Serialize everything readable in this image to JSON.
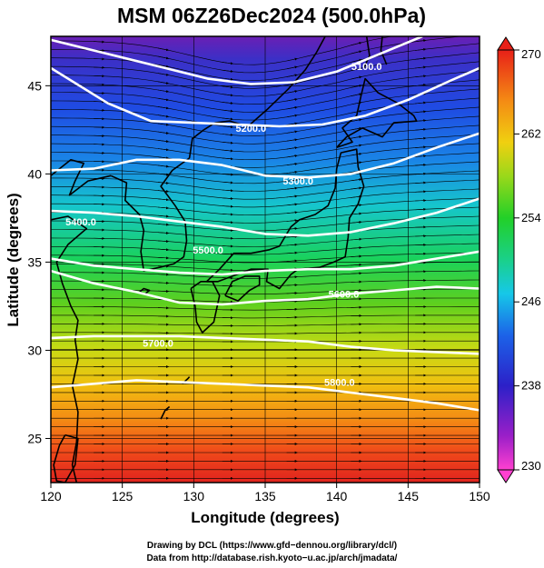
{
  "title": "MSM 06Z26Dec2024 (500.0hPa)",
  "x_axis": {
    "label": "Longitude (degrees)",
    "range": [
      120,
      150
    ],
    "ticks": [
      {
        "v": 120,
        "t": "120"
      },
      {
        "v": 125,
        "t": "125"
      },
      {
        "v": 130,
        "t": "130"
      },
      {
        "v": 135,
        "t": "135"
      },
      {
        "v": 140,
        "t": "140"
      },
      {
        "v": 145,
        "t": "145"
      },
      {
        "v": 150,
        "t": "150"
      }
    ]
  },
  "y_axis": {
    "label": "Latitude  (degrees)",
    "range": [
      22.5,
      47.8
    ],
    "ticks": [
      {
        "v": 25,
        "t": "25"
      },
      {
        "v": 30,
        "t": "30"
      },
      {
        "v": 35,
        "t": "35"
      },
      {
        "v": 40,
        "t": "40"
      },
      {
        "v": 45,
        "t": "45"
      }
    ]
  },
  "colorbar": {
    "range": [
      230,
      270
    ],
    "ticks": [
      {
        "v": 230,
        "t": "230"
      },
      {
        "v": 238,
        "t": "238"
      },
      {
        "v": 246,
        "t": "246"
      },
      {
        "v": 254,
        "t": "254"
      },
      {
        "v": 262,
        "t": "262"
      },
      {
        "v": 270,
        "t": "270"
      }
    ]
  },
  "contours": [
    {
      "label": "5100.0",
      "points": [
        [
          120,
          47.6
        ],
        [
          124,
          46.8
        ],
        [
          128,
          46.0
        ],
        [
          131,
          45.4
        ],
        [
          134,
          45.1
        ],
        [
          137,
          45.2
        ],
        [
          140,
          45.8
        ],
        [
          143,
          46.8
        ],
        [
          146,
          47.8
        ]
      ],
      "label_at": [
        142.1,
        46.1
      ]
    },
    {
      "label": "5200.0",
      "points": [
        [
          120,
          46.0
        ],
        [
          124,
          44.0
        ],
        [
          127,
          43.0
        ],
        [
          130,
          42.9
        ],
        [
          133,
          42.8
        ],
        [
          136,
          42.7
        ],
        [
          139,
          42.8
        ],
        [
          142,
          43.3
        ],
        [
          145,
          44.2
        ],
        [
          148,
          45.3
        ],
        [
          150,
          46.0
        ]
      ],
      "label_at": [
        134.0,
        42.6
      ]
    },
    {
      "label": "5300.0",
      "points": [
        [
          120,
          40.2
        ],
        [
          123,
          40.3
        ],
        [
          126,
          40.8
        ],
        [
          129,
          40.8
        ],
        [
          132,
          40.5
        ],
        [
          135,
          39.9
        ],
        [
          138,
          39.8
        ],
        [
          141,
          40.0
        ],
        [
          144,
          40.6
        ],
        [
          147,
          41.5
        ],
        [
          150,
          42.3
        ]
      ],
      "label_at": [
        137.3,
        39.6
      ]
    },
    {
      "label": "5400.0",
      "points": [
        [
          120,
          37.9
        ],
        [
          123,
          37.8
        ],
        [
          126,
          37.6
        ],
        [
          129,
          37.3
        ],
        [
          132,
          37.0
        ],
        [
          135,
          36.6
        ],
        [
          138,
          36.5
        ],
        [
          141,
          36.7
        ],
        [
          144,
          37.2
        ],
        [
          147,
          37.8
        ],
        [
          150,
          38.6
        ]
      ],
      "label_at": [
        122.1,
        37.3
      ]
    },
    {
      "label": "5500.0",
      "points": [
        [
          120,
          35.2
        ],
        [
          123,
          34.8
        ],
        [
          126,
          34.6
        ],
        [
          129,
          34.4
        ],
        [
          132,
          34.3
        ],
        [
          135,
          34.5
        ],
        [
          138,
          34.6
        ],
        [
          141,
          34.6
        ],
        [
          144,
          34.8
        ],
        [
          147,
          35.2
        ],
        [
          150,
          35.6
        ]
      ],
      "label_at": [
        131.0,
        35.7
      ]
    },
    {
      "label": "5600.0",
      "points": [
        [
          120,
          34.5
        ],
        [
          123,
          33.8
        ],
        [
          126,
          33.3
        ],
        [
          129,
          32.7
        ],
        [
          132,
          32.6
        ],
        [
          135,
          32.8
        ],
        [
          138,
          32.9
        ],
        [
          141,
          33.2
        ],
        [
          144,
          33.4
        ],
        [
          147,
          33.6
        ],
        [
          150,
          33.5
        ]
      ],
      "label_at": [
        140.5,
        33.2
      ]
    },
    {
      "label": "5700.0",
      "points": [
        [
          120,
          30.7
        ],
        [
          123,
          30.8
        ],
        [
          126,
          30.8
        ],
        [
          129,
          30.8
        ],
        [
          132,
          30.7
        ],
        [
          135,
          30.6
        ],
        [
          138,
          30.5
        ],
        [
          141,
          30.2
        ],
        [
          144,
          30.0
        ],
        [
          147,
          29.9
        ],
        [
          150,
          29.8
        ]
      ],
      "label_at": [
        127.5,
        30.4
      ]
    },
    {
      "label": "5800.0",
      "points": [
        [
          120,
          27.9
        ],
        [
          123,
          28.1
        ],
        [
          126,
          28.3
        ],
        [
          129,
          28.2
        ],
        [
          132,
          28.1
        ],
        [
          135,
          28.0
        ],
        [
          138,
          27.9
        ],
        [
          141,
          27.6
        ],
        [
          144,
          27.3
        ],
        [
          147,
          27.0
        ],
        [
          150,
          26.6
        ]
      ],
      "label_at": [
        140.2,
        28.2
      ]
    }
  ],
  "coastlines": [
    {
      "name": "China coast",
      "points": [
        [
          121.8,
          22.5
        ],
        [
          121.5,
          23.5
        ],
        [
          121.8,
          24.8
        ],
        [
          121.9,
          26.5
        ],
        [
          121.5,
          28.0
        ],
        [
          121.9,
          29.5
        ],
        [
          121.7,
          30.6
        ],
        [
          121.9,
          31.7
        ],
        [
          121.4,
          32.5
        ],
        [
          120.8,
          33.8
        ],
        [
          120.4,
          35.0
        ],
        [
          121.2,
          36.0
        ],
        [
          122.5,
          36.9
        ],
        [
          121.2,
          37.6
        ],
        [
          120.0,
          37.4
        ]
      ]
    },
    {
      "name": "Taiwan",
      "points": [
        [
          121.0,
          25.2
        ],
        [
          121.9,
          25.0
        ],
        [
          121.7,
          23.5
        ],
        [
          121.0,
          22.5
        ],
        [
          120.4,
          22.6
        ],
        [
          120.2,
          23.5
        ],
        [
          120.6,
          24.6
        ],
        [
          121.0,
          25.2
        ]
      ]
    },
    {
      "name": "Liaodong",
      "points": [
        [
          120.0,
          39.9
        ],
        [
          121.4,
          40.8
        ],
        [
          122.3,
          40.6
        ],
        [
          121.7,
          39.6
        ],
        [
          121.3,
          38.8
        ],
        [
          122.6,
          39.6
        ],
        [
          124.2,
          39.9
        ]
      ]
    },
    {
      "name": "Korea",
      "points": [
        [
          124.2,
          39.9
        ],
        [
          125.3,
          39.5
        ],
        [
          125.2,
          38.5
        ],
        [
          126.2,
          37.7
        ],
        [
          126.5,
          36.8
        ],
        [
          126.3,
          35.6
        ],
        [
          126.5,
          34.5
        ],
        [
          127.6,
          34.7
        ],
        [
          128.6,
          34.9
        ],
        [
          129.3,
          35.3
        ],
        [
          129.5,
          36.2
        ],
        [
          129.4,
          37.3
        ],
        [
          128.7,
          38.2
        ],
        [
          127.7,
          39.3
        ],
        [
          128.5,
          40.2
        ],
        [
          129.7,
          40.9
        ],
        [
          129.9,
          42.0
        ],
        [
          130.7,
          42.5
        ]
      ]
    },
    {
      "name": "Russia coast",
      "points": [
        [
          130.7,
          42.5
        ],
        [
          131.5,
          42.9
        ],
        [
          132.5,
          43.0
        ],
        [
          133.8,
          42.7
        ],
        [
          135.2,
          43.7
        ],
        [
          136.6,
          44.8
        ],
        [
          137.8,
          45.9
        ],
        [
          138.6,
          46.9
        ],
        [
          139.2,
          47.8
        ]
      ]
    },
    {
      "name": "Kyushu",
      "points": [
        [
          129.8,
          33.5
        ],
        [
          130.5,
          33.9
        ],
        [
          131.3,
          33.9
        ],
        [
          131.8,
          33.1
        ],
        [
          131.4,
          31.6
        ],
        [
          130.6,
          31.0
        ],
        [
          130.2,
          31.6
        ],
        [
          130.1,
          32.5
        ],
        [
          129.8,
          33.5
        ]
      ]
    },
    {
      "name": "Shikoku",
      "points": [
        [
          132.2,
          33.1
        ],
        [
          132.7,
          33.9
        ],
        [
          133.6,
          34.2
        ],
        [
          134.6,
          34.2
        ],
        [
          134.6,
          33.7
        ],
        [
          133.9,
          33.4
        ],
        [
          133.1,
          32.8
        ],
        [
          132.2,
          33.1
        ]
      ]
    },
    {
      "name": "Honshu",
      "points": [
        [
          130.9,
          33.9
        ],
        [
          131.8,
          34.6
        ],
        [
          132.8,
          35.5
        ],
        [
          134.0,
          35.5
        ],
        [
          135.3,
          35.7
        ],
        [
          136.0,
          35.9
        ],
        [
          136.8,
          37.0
        ],
        [
          137.4,
          37.4
        ],
        [
          138.5,
          37.7
        ],
        [
          139.4,
          38.2
        ],
        [
          139.9,
          39.2
        ],
        [
          140.0,
          40.3
        ],
        [
          140.3,
          41.2
        ],
        [
          141.4,
          41.4
        ],
        [
          141.5,
          40.4
        ],
        [
          141.9,
          39.3
        ],
        [
          141.5,
          38.3
        ],
        [
          140.9,
          37.5
        ],
        [
          140.8,
          36.4
        ],
        [
          140.6,
          35.3
        ],
        [
          139.8,
          35.0
        ],
        [
          138.8,
          34.7
        ],
        [
          137.3,
          34.6
        ],
        [
          136.8,
          34.3
        ],
        [
          136.0,
          33.5
        ],
        [
          135.1,
          33.9
        ],
        [
          135.2,
          34.6
        ],
        [
          134.0,
          34.6
        ],
        [
          132.7,
          34.2
        ],
        [
          131.7,
          33.9
        ],
        [
          130.9,
          33.9
        ]
      ]
    },
    {
      "name": "Hokkaido",
      "points": [
        [
          140.0,
          41.5
        ],
        [
          141.1,
          41.8
        ],
        [
          140.4,
          42.6
        ],
        [
          141.4,
          43.3
        ],
        [
          141.7,
          44.4
        ],
        [
          142.0,
          45.4
        ],
        [
          142.9,
          44.6
        ],
        [
          144.3,
          44.0
        ],
        [
          145.4,
          43.3
        ],
        [
          145.6,
          43.0
        ],
        [
          144.0,
          42.9
        ],
        [
          143.2,
          42.1
        ],
        [
          141.8,
          42.6
        ],
        [
          140.7,
          42.1
        ],
        [
          140.0,
          41.5
        ]
      ]
    },
    {
      "name": "Sakhalin",
      "points": [
        [
          141.9,
          46.0
        ],
        [
          142.3,
          46.7
        ],
        [
          142.1,
          47.8
        ]
      ]
    },
    {
      "name": "Sakhalin east",
      "points": [
        [
          143.5,
          46.2
        ],
        [
          143.1,
          47.0
        ],
        [
          143.2,
          47.8
        ]
      ]
    },
    {
      "name": "Jeju",
      "points": [
        [
          126.2,
          33.3
        ],
        [
          126.5,
          33.5
        ],
        [
          126.9,
          33.4
        ],
        [
          126.6,
          33.2
        ],
        [
          126.2,
          33.3
        ]
      ]
    },
    {
      "name": "Ryukyu",
      "points": [
        [
          127.7,
          26.1
        ],
        [
          128.0,
          26.6
        ],
        [
          128.3,
          26.8
        ]
      ]
    },
    {
      "name": "Amami",
      "points": [
        [
          129.2,
          28.1
        ],
        [
          129.6,
          28.4
        ],
        [
          129.7,
          28.5
        ]
      ]
    }
  ]
}
